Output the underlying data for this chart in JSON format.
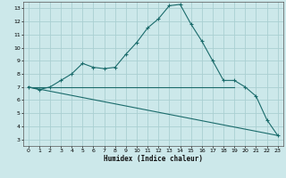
{
  "xlabel": "Humidex (Indice chaleur)",
  "xlim": [
    -0.5,
    23.5
  ],
  "ylim": [
    2.5,
    13.5
  ],
  "xticks": [
    0,
    1,
    2,
    3,
    4,
    5,
    6,
    7,
    8,
    9,
    10,
    11,
    12,
    13,
    14,
    15,
    16,
    17,
    18,
    19,
    20,
    21,
    22,
    23
  ],
  "yticks": [
    3,
    4,
    5,
    6,
    7,
    8,
    9,
    10,
    11,
    12,
    13
  ],
  "background_color": "#cce8ea",
  "grid_color": "#aacfd2",
  "line_color": "#1a6b6b",
  "curve_x": [
    0,
    1,
    2,
    3,
    4,
    5,
    6,
    7,
    8,
    9,
    10,
    11,
    12,
    13,
    14,
    15,
    16,
    17,
    18,
    19,
    20,
    21,
    22,
    23
  ],
  "curve_y": [
    7.0,
    6.8,
    7.0,
    7.5,
    8.0,
    8.8,
    8.5,
    8.4,
    8.5,
    9.5,
    10.4,
    11.5,
    12.2,
    13.2,
    13.3,
    11.8,
    10.5,
    9.0,
    7.5,
    7.5,
    7.0,
    6.3,
    4.5,
    3.3
  ],
  "line1_x": [
    0,
    19
  ],
  "line1_y": [
    7.0,
    7.0
  ],
  "line2_x": [
    0,
    23
  ],
  "line2_y": [
    7.0,
    3.3
  ]
}
